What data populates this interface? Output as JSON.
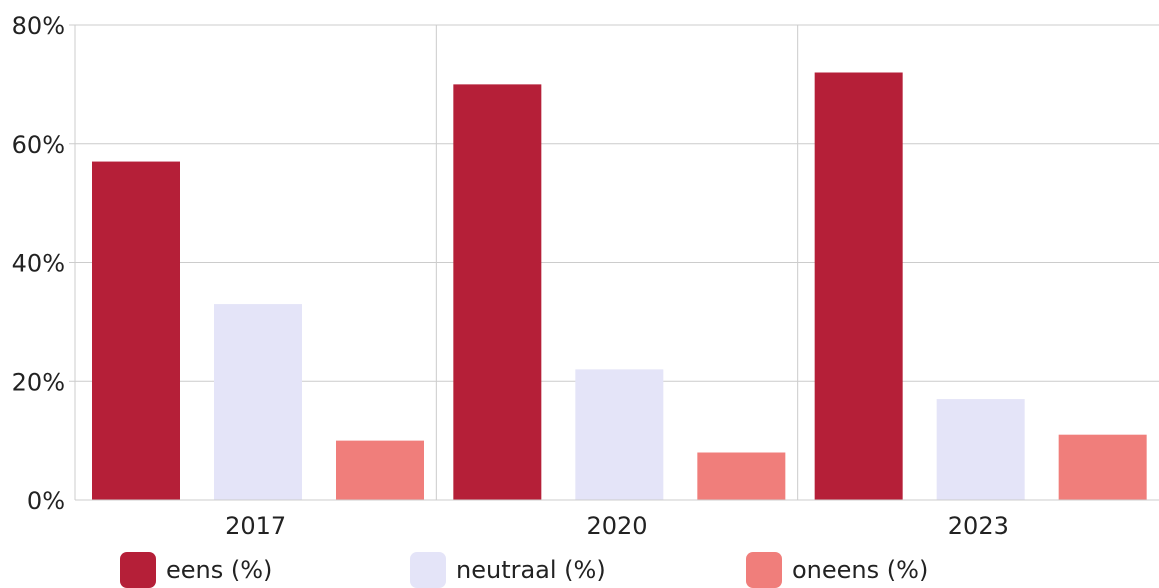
{
  "chart_data": {
    "type": "bar",
    "categories": [
      "2017",
      "2020",
      "2023"
    ],
    "series": [
      {
        "name": "eens (%)",
        "values": [
          57,
          70,
          72
        ],
        "color": "#B51F38"
      },
      {
        "name": "neutraal (%)",
        "values": [
          33,
          22,
          17
        ],
        "color": "#E4E4F8"
      },
      {
        "name": "oneens (%)",
        "values": [
          10,
          8,
          11
        ],
        "color": "#F07E7B"
      }
    ],
    "ylim": [
      0,
      80
    ],
    "yticks": [
      "0%",
      "20%",
      "40%",
      "60%",
      "80%"
    ],
    "grid": true,
    "legend_position": "bottom"
  }
}
